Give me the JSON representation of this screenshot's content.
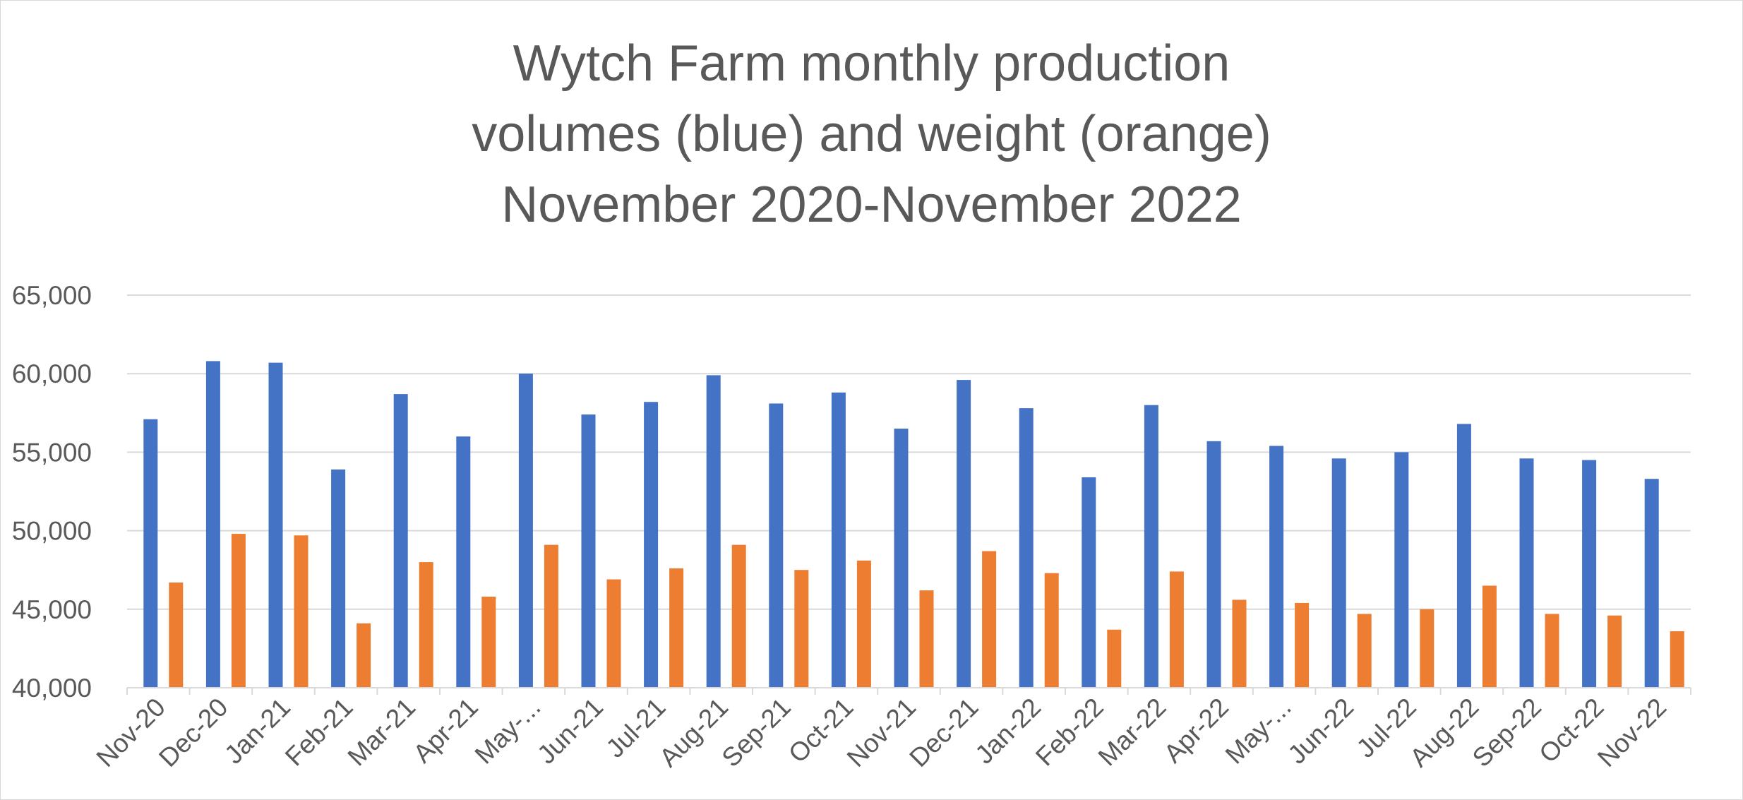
{
  "chart_data": {
    "type": "bar",
    "title": "Wytch Farm monthly production\nvolumes (blue) and weight (orange)\nNovember 2020-November 2022",
    "xlabel": "",
    "ylabel": "",
    "ylim": [
      40000,
      65000
    ],
    "yticks": [
      "40,000",
      "45,000",
      "50,000",
      "55,000",
      "60,000",
      "65,000"
    ],
    "ytick_values": [
      40000,
      45000,
      50000,
      55000,
      60000,
      65000
    ],
    "grid": true,
    "legend": "none",
    "categories": [
      "Nov-20",
      "Dec-20",
      "Jan-21",
      "Feb-21",
      "Mar-21",
      "Apr-21",
      "May-...",
      "Jun-21",
      "Jul-21",
      "Aug-21",
      "Sep-21",
      "Oct-21",
      "Nov-21",
      "Dec-21",
      "Jan-22",
      "Feb-22",
      "Mar-22",
      "Apr-22",
      "May-...",
      "Jun-22",
      "Jul-22",
      "Aug-22",
      "Sep-22",
      "Oct-22",
      "Nov-22"
    ],
    "series": [
      {
        "color": "#4472c4",
        "values": [
          57100,
          60800,
          60700,
          53900,
          58700,
          56000,
          60000,
          57400,
          58200,
          59900,
          58100,
          58800,
          56500,
          59600,
          57800,
          53400,
          58000,
          55700,
          55400,
          54600,
          55000,
          56800,
          54600,
          54500,
          53300
        ]
      },
      {
        "color": "#ed7d31",
        "values": [
          46700,
          49800,
          49700,
          44100,
          48000,
          45800,
          49100,
          46900,
          47600,
          49100,
          47500,
          48100,
          46200,
          48700,
          47300,
          43700,
          47400,
          45600,
          45400,
          44700,
          45000,
          46500,
          44700,
          44600,
          43600
        ]
      }
    ]
  }
}
